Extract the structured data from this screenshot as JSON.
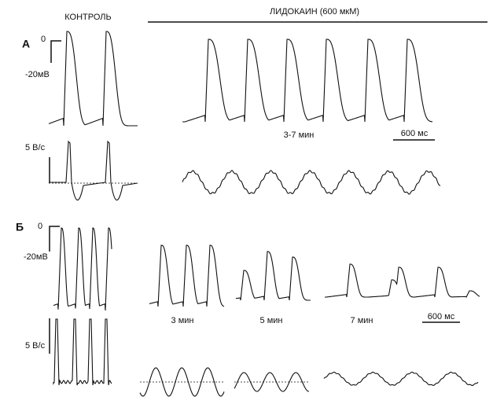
{
  "header": {
    "control": "КОНТРОЛЬ",
    "drug": "ЛИДОКАИН (600 мкМ)"
  },
  "panels": [
    {
      "label": "А",
      "voltage_zero": "0",
      "voltage_scale": "-20мВ",
      "rate_scale": "5 В/с",
      "times": [
        "3-7 мин"
      ],
      "time_scale": "600 мс"
    },
    {
      "label": "Б",
      "voltage_zero": "0",
      "voltage_scale": "-20мВ",
      "rate_scale": "5 В/с",
      "times": [
        "3 мин",
        "5 мин",
        "7 мин"
      ],
      "time_scale": "600 мс"
    }
  ]
}
